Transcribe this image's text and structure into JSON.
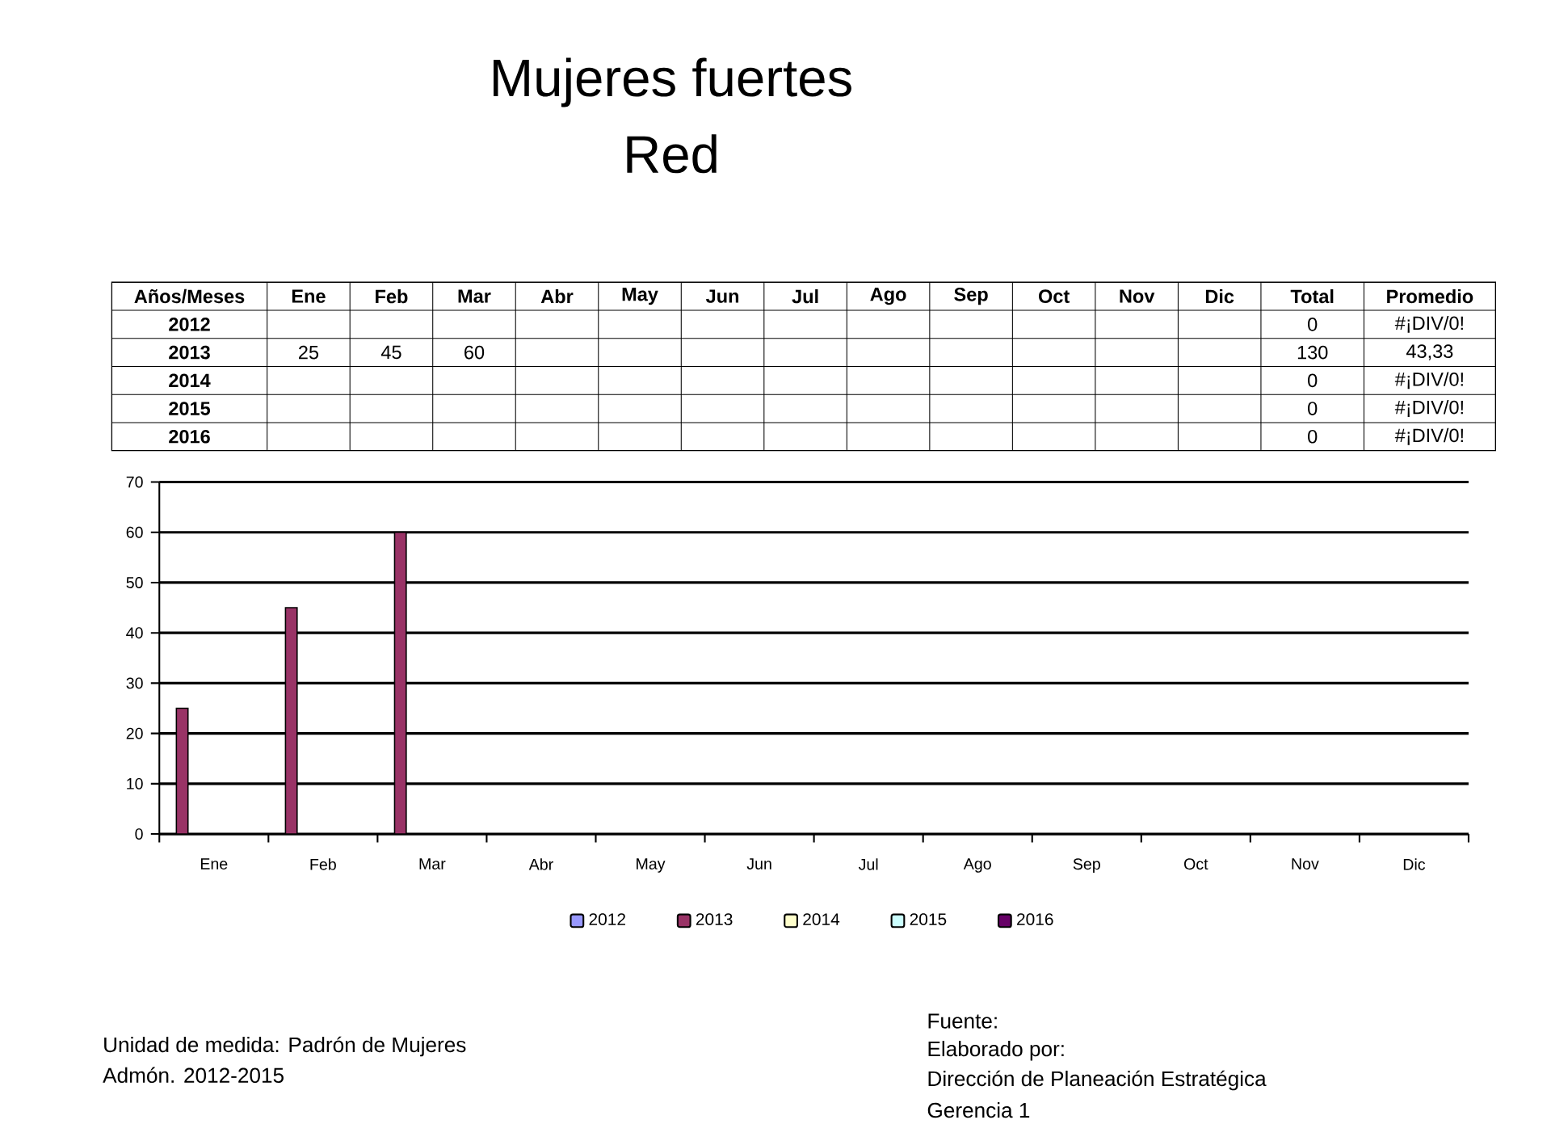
{
  "chart_data": {
    "type": "bar",
    "title": "Mujeres fuertes",
    "subtitle": "Red",
    "categories": [
      "Ene",
      "Feb",
      "Mar",
      "Abr",
      "May",
      "Jun",
      "Jul",
      "Ago",
      "Sep",
      "Oct",
      "Nov",
      "Dic"
    ],
    "series": [
      {
        "name": "2012",
        "color": "#9999ff",
        "values": [
          null,
          null,
          null,
          null,
          null,
          null,
          null,
          null,
          null,
          null,
          null,
          null
        ]
      },
      {
        "name": "2013",
        "color": "#993366",
        "values": [
          25,
          45,
          60,
          null,
          null,
          null,
          null,
          null,
          null,
          null,
          null,
          null
        ]
      },
      {
        "name": "2014",
        "color": "#ffffcc",
        "values": [
          null,
          null,
          null,
          null,
          null,
          null,
          null,
          null,
          null,
          null,
          null,
          null
        ]
      },
      {
        "name": "2015",
        "color": "#ccffff",
        "values": [
          null,
          null,
          null,
          null,
          null,
          null,
          null,
          null,
          null,
          null,
          null,
          null
        ]
      },
      {
        "name": "2016",
        "color": "#660066",
        "values": [
          null,
          null,
          null,
          null,
          null,
          null,
          null,
          null,
          null,
          null,
          null,
          null
        ]
      }
    ],
    "ylim": [
      0,
      70
    ],
    "yticks": [
      0,
      10,
      20,
      30,
      40,
      50,
      60,
      70
    ],
    "grid": "y",
    "legend": "bottom",
    "annotations": [
      "Años/Meses",
      "Total",
      "Promedio",
      "0",
      "#¡DIV/0!",
      "130",
      "43,33",
      "0",
      "#¡DIV/0!",
      "0",
      "#¡DIV/0!",
      "0",
      "#¡DIV/0!",
      "Unidad de medida: Padrón de Mujeres",
      "Admón. 2012-2015",
      "Fuente:",
      "Elaborado por:",
      "Dirección de Planeación Estratégica",
      "Gerencia 1",
      "25",
      "45",
      "60"
    ]
  }
}
